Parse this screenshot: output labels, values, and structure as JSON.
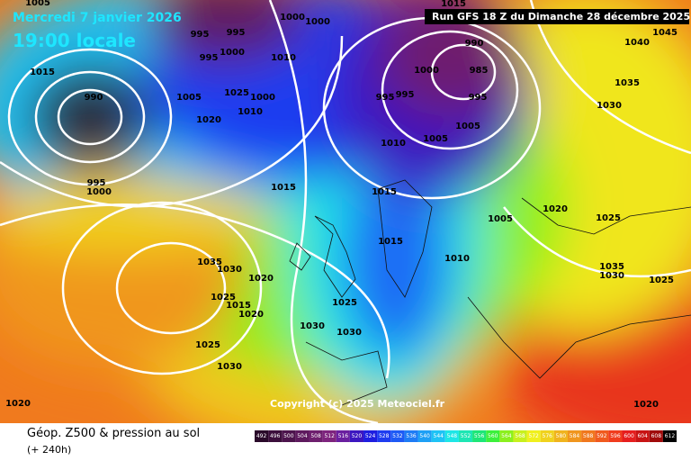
{
  "header": {
    "date": "Mercredi 7 janvier 2026",
    "time": "19:00 locale",
    "run": "Run GFS 18 Z du Dimanche 28 décembre 2025"
  },
  "copyright": "Copyright (c) 2025 Meteociel.fr",
  "footer": {
    "title": "Géop. Z500 & pression au sol",
    "lead": "(+ 240h)"
  },
  "legend": {
    "values": [
      492,
      496,
      500,
      504,
      508,
      512,
      516,
      520,
      524,
      528,
      532,
      536,
      540,
      544,
      548,
      552,
      556,
      560,
      564,
      568,
      572,
      576,
      580,
      584,
      588,
      592,
      596,
      600,
      604,
      608,
      612
    ],
    "colors": [
      "#2a0a2a",
      "#3c0f3c",
      "#4d144d",
      "#5e1a5e",
      "#6e1f6e",
      "#7e247e",
      "#6a1fa0",
      "#3c16c0",
      "#1e1ee0",
      "#1e3cf0",
      "#1e5af5",
      "#1e7cf5",
      "#1ea0f5",
      "#1ec3f5",
      "#1ee6e6",
      "#1ee6b4",
      "#1ee678",
      "#3cf03c",
      "#8cf01e",
      "#c8f01e",
      "#f0f01e",
      "#f0d21e",
      "#f0b41e",
      "#f0961e",
      "#f0781e",
      "#f05a1e",
      "#f03c1e",
      "#e61e1e",
      "#c81414",
      "#a00a0a",
      "#000000"
    ]
  },
  "isobars": [
    "1005",
    "995",
    "995",
    "1000",
    "1000",
    "1015",
    "1010",
    "995",
    "1000",
    "1015",
    "990",
    "1005",
    "1025",
    "1000",
    "1010",
    "1020",
    "990",
    "985",
    "1000",
    "995",
    "995",
    "995",
    "1005",
    "1005",
    "1010",
    "995",
    "1000",
    "1015",
    "1015",
    "1005",
    "1020",
    "1025",
    "1015",
    "1010",
    "1035",
    "1030",
    "1020",
    "1035",
    "1030",
    "1025",
    "1025",
    "1015",
    "1020",
    "1025",
    "1030",
    "1030",
    "1025",
    "1030",
    "1020",
    "1020",
    "1035",
    "1030",
    "1040",
    "1045"
  ]
}
